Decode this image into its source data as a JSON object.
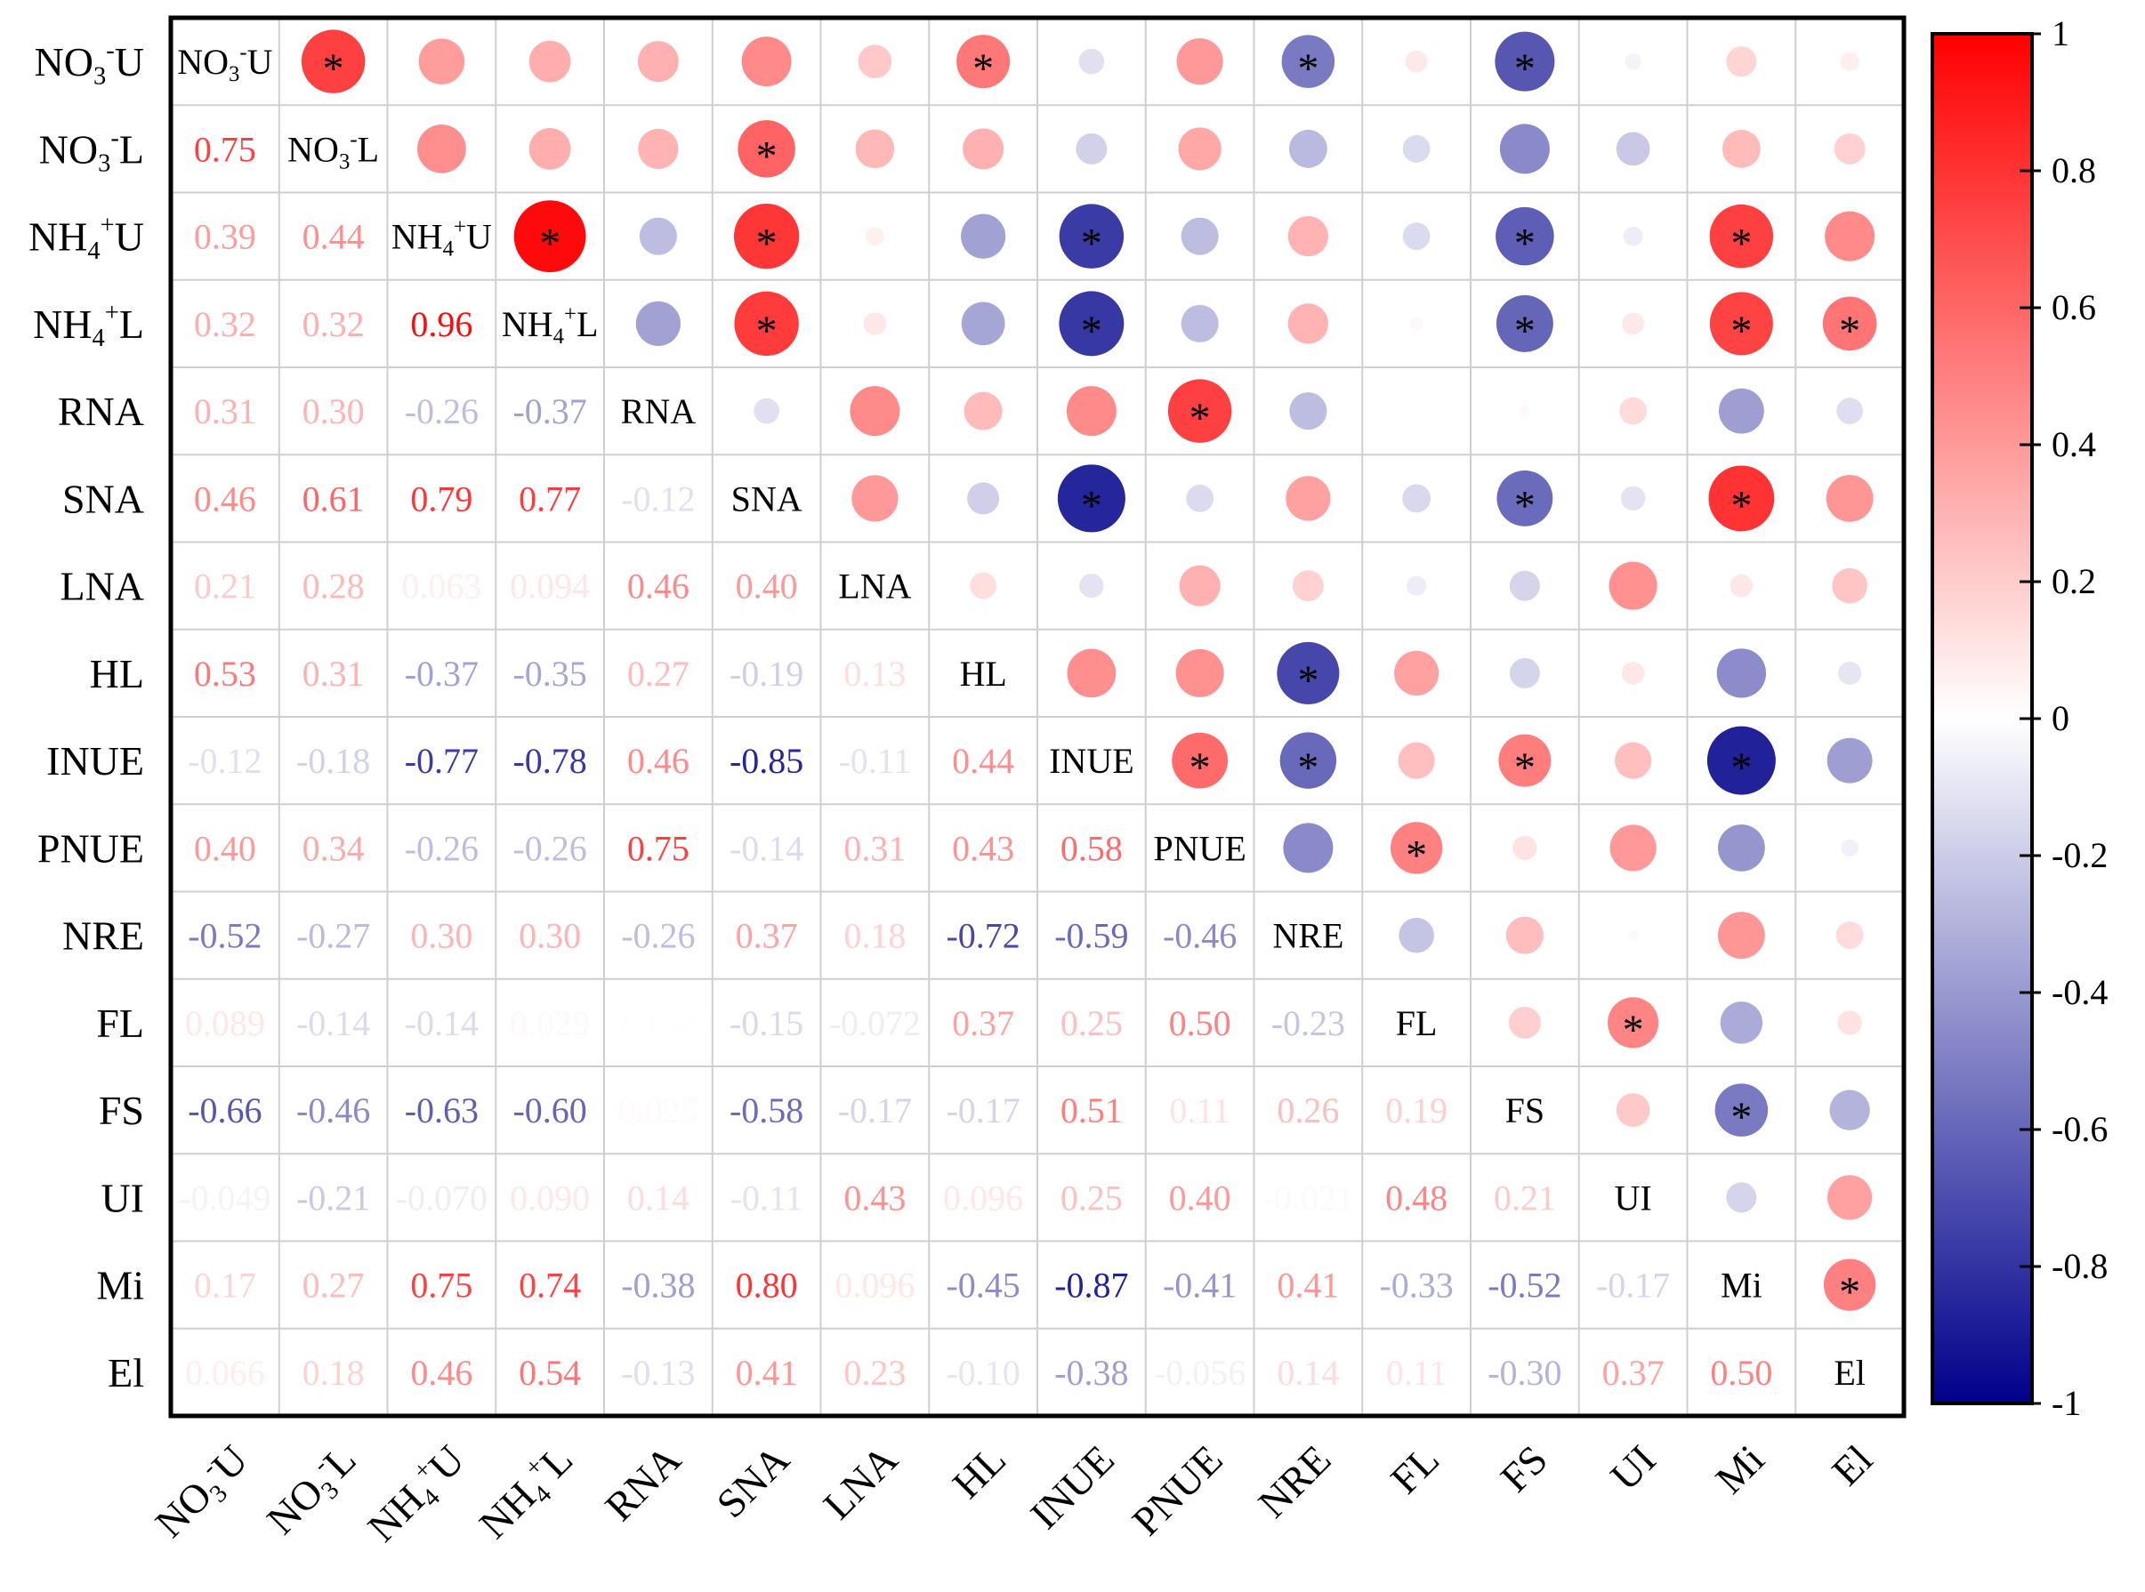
{
  "chart_data": {
    "type": "heatmap",
    "title": "",
    "variables": [
      "NO3-U",
      "NO3-L",
      "NH4+U",
      "NH4+L",
      "RNA",
      "SNA",
      "LNA",
      "HL",
      "INUE",
      "PNUE",
      "NRE",
      "FL",
      "FS",
      "UI",
      "Mi",
      "El"
    ],
    "variable_display": [
      {
        "base": "NO",
        "sub": "3",
        "sup": "-",
        "rest": "U"
      },
      {
        "base": "NO",
        "sub": "3",
        "sup": "-",
        "rest": "L"
      },
      {
        "base": "NH",
        "sub": "4",
        "sup": "+",
        "rest": "U"
      },
      {
        "base": "NH",
        "sub": "4",
        "sup": "+",
        "rest": "L"
      },
      {
        "base": "RNA"
      },
      {
        "base": "SNA"
      },
      {
        "base": "LNA"
      },
      {
        "base": "HL"
      },
      {
        "base": "INUE"
      },
      {
        "base": "PNUE"
      },
      {
        "base": "NRE"
      },
      {
        "base": "FL"
      },
      {
        "base": "FS"
      },
      {
        "base": "UI"
      },
      {
        "base": "Mi"
      },
      {
        "base": "El"
      }
    ],
    "correlation_matrix": [
      [
        1,
        0.75,
        0.39,
        0.32,
        0.31,
        0.46,
        0.21,
        0.53,
        -0.12,
        0.4,
        -0.52,
        0.089,
        -0.66,
        -0.049,
        0.17,
        0.066
      ],
      [
        0.75,
        1,
        0.44,
        0.32,
        0.3,
        0.61,
        0.28,
        0.31,
        -0.18,
        0.34,
        -0.27,
        -0.14,
        -0.46,
        -0.21,
        0.27,
        0.18
      ],
      [
        0.39,
        0.44,
        1,
        0.96,
        -0.26,
        0.79,
        0.063,
        -0.37,
        -0.77,
        -0.26,
        0.3,
        -0.14,
        -0.63,
        -0.07,
        0.75,
        0.46
      ],
      [
        0.32,
        0.32,
        0.96,
        1,
        -0.37,
        0.77,
        0.094,
        -0.35,
        -0.78,
        -0.26,
        0.3,
        0.029,
        -0.6,
        0.09,
        0.74,
        0.54
      ],
      [
        0.31,
        0.3,
        -0.26,
        -0.37,
        1,
        -0.12,
        0.46,
        0.27,
        0.46,
        0.75,
        -0.26,
        0.0049,
        0.025,
        0.14,
        -0.38,
        -0.13
      ],
      [
        0.46,
        0.61,
        0.79,
        0.77,
        -0.12,
        1,
        0.4,
        -0.19,
        -0.85,
        -0.14,
        0.37,
        -0.15,
        -0.58,
        -0.11,
        0.8,
        0.41
      ],
      [
        0.21,
        0.28,
        0.063,
        0.094,
        0.46,
        0.4,
        1,
        0.13,
        -0.11,
        0.31,
        0.18,
        -0.072,
        -0.17,
        0.43,
        0.096,
        0.23
      ],
      [
        0.53,
        0.31,
        -0.37,
        -0.35,
        0.27,
        -0.19,
        0.13,
        1,
        0.44,
        0.43,
        -0.72,
        0.37,
        -0.17,
        0.096,
        -0.45,
        -0.1
      ],
      [
        -0.12,
        -0.18,
        -0.77,
        -0.78,
        0.46,
        -0.85,
        -0.11,
        0.44,
        1,
        0.58,
        -0.59,
        0.25,
        0.51,
        0.25,
        -0.87,
        -0.38
      ],
      [
        0.4,
        0.34,
        -0.26,
        -0.26,
        0.75,
        -0.14,
        0.31,
        0.43,
        0.58,
        1,
        -0.46,
        0.5,
        0.11,
        0.4,
        -0.41,
        -0.056
      ],
      [
        -0.52,
        -0.27,
        0.3,
        0.3,
        -0.26,
        0.37,
        0.18,
        -0.72,
        -0.59,
        -0.46,
        1,
        -0.23,
        0.26,
        -0.021,
        0.41,
        0.14
      ],
      [
        0.089,
        -0.14,
        -0.14,
        0.029,
        0.0049,
        -0.15,
        -0.072,
        0.37,
        0.25,
        0.5,
        -0.23,
        1,
        0.19,
        0.48,
        -0.33,
        0.11
      ],
      [
        -0.66,
        -0.46,
        -0.63,
        -0.6,
        0.025,
        -0.58,
        -0.17,
        -0.17,
        0.51,
        0.11,
        0.26,
        0.19,
        1,
        0.21,
        -0.52,
        -0.3
      ],
      [
        -0.049,
        -0.21,
        -0.07,
        0.09,
        0.14,
        -0.11,
        0.43,
        0.096,
        0.25,
        0.4,
        -0.021,
        0.48,
        0.21,
        1,
        -0.17,
        0.37
      ],
      [
        0.17,
        0.27,
        0.75,
        0.74,
        -0.38,
        0.8,
        0.096,
        -0.45,
        -0.87,
        -0.41,
        0.41,
        -0.33,
        -0.52,
        -0.17,
        1,
        0.5
      ],
      [
        0.066,
        0.18,
        0.46,
        0.54,
        -0.13,
        0.41,
        0.23,
        -0.1,
        -0.38,
        -0.056,
        0.14,
        0.11,
        -0.3,
        0.37,
        0.5,
        1
      ]
    ],
    "lower_triangle_labels": [
      [],
      [
        "0.75"
      ],
      [
        "0.39",
        "0.44"
      ],
      [
        "0.32",
        "0.32",
        "0.96"
      ],
      [
        "0.31",
        "0.30",
        "-0.26",
        "-0.37"
      ],
      [
        "0.46",
        "0.61",
        "0.79",
        "0.77",
        "-0.12"
      ],
      [
        "0.21",
        "0.28",
        "0.063",
        "0.094",
        "0.46",
        "0.40"
      ],
      [
        "0.53",
        "0.31",
        "-0.37",
        "-0.35",
        "0.27",
        "-0.19",
        "0.13"
      ],
      [
        "-0.12",
        "-0.18",
        "-0.77",
        "-0.78",
        "0.46",
        "-0.85",
        "-0.11",
        "0.44"
      ],
      [
        "0.40",
        "0.34",
        "-0.26",
        "-0.26",
        "0.75",
        "-0.14",
        "0.31",
        "0.43",
        "0.58"
      ],
      [
        "-0.52",
        "-0.27",
        "0.30",
        "0.30",
        "-0.26",
        "0.37",
        "0.18",
        "-0.72",
        "-0.59",
        "-0.46"
      ],
      [
        "0.089",
        "-0.14",
        "-0.14",
        "0.029",
        "0.0049",
        "-0.15",
        "-0.072",
        "0.37",
        "0.25",
        "0.50",
        "-0.23"
      ],
      [
        "-0.66",
        "-0.46",
        "-0.63",
        "-0.60",
        "0.025",
        "-0.58",
        "-0.17",
        "-0.17",
        "0.51",
        "0.11",
        "0.26",
        "0.19"
      ],
      [
        "-0.049",
        "-0.21",
        "-0.070",
        "0.090",
        "0.14",
        "-0.11",
        "0.43",
        "0.096",
        "0.25",
        "0.40",
        "-0.021",
        "0.48",
        "0.21"
      ],
      [
        "0.17",
        "0.27",
        "0.75",
        "0.74",
        "-0.38",
        "0.80",
        "0.096",
        "-0.45",
        "-0.87",
        "-0.41",
        "0.41",
        "-0.33",
        "-0.52",
        "-0.17"
      ],
      [
        "0.066",
        "0.18",
        "0.46",
        "0.54",
        "-0.13",
        "0.41",
        "0.23",
        "-0.10",
        "-0.38",
        "-0.056",
        "0.14",
        "0.11",
        "-0.30",
        "0.37",
        "0.50"
      ]
    ],
    "significant_upper": [
      [
        0,
        1
      ],
      [
        0,
        7
      ],
      [
        0,
        10
      ],
      [
        0,
        12
      ],
      [
        1,
        5
      ],
      [
        2,
        3
      ],
      [
        2,
        5
      ],
      [
        2,
        8
      ],
      [
        2,
        12
      ],
      [
        2,
        14
      ],
      [
        3,
        5
      ],
      [
        3,
        8
      ],
      [
        3,
        12
      ],
      [
        3,
        14
      ],
      [
        3,
        15
      ],
      [
        4,
        9
      ],
      [
        5,
        8
      ],
      [
        5,
        12
      ],
      [
        5,
        14
      ],
      [
        7,
        10
      ],
      [
        8,
        9
      ],
      [
        8,
        10
      ],
      [
        8,
        12
      ],
      [
        8,
        14
      ],
      [
        9,
        11
      ],
      [
        11,
        13
      ],
      [
        12,
        14
      ],
      [
        14,
        15
      ]
    ],
    "significance_marker": "*",
    "colorbar": {
      "range": [
        -1,
        1
      ],
      "ticks": [
        "1",
        "0.8",
        "0.6",
        "0.4",
        "0.2",
        "0",
        "-0.2",
        "-0.4",
        "-0.6",
        "-0.8",
        "-1"
      ],
      "colors": {
        "negative": "#00008B",
        "zero": "#FFFFFF",
        "positive": "#FF0000"
      }
    },
    "upper_triangle_style": "circle sized by |r|",
    "lower_triangle_style": "value text colored by r"
  }
}
